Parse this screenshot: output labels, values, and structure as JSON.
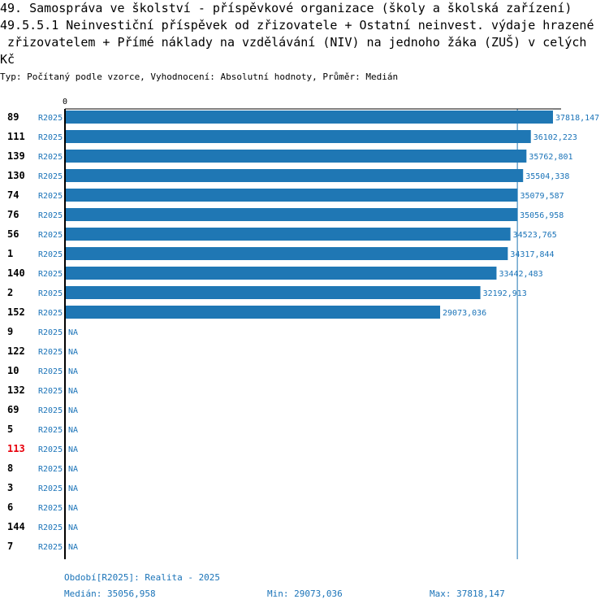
{
  "title_lines": [
    "49. Samospráva ve školství - příspěvkové organizace (školy a školská zařízení)",
    "49.5.5.1 Neinvestiční příspěvek od zřizovatele + Ostatní neinvest. výdaje hrazené",
    " zřizovatelem + Přímé náklady na vzdělávání (NIV) na jednoho žáka (ZUŠ) v celých",
    "Kč"
  ],
  "subtitle": "Typ: Počítaný podle vzorce, Vyhodnocení: Absolutní hodnoty, Průměr: Medián",
  "colors": {
    "bar": "#1f77b4",
    "label_blue": "#1a73b8",
    "highlight": "#e8000b",
    "text": "#000000"
  },
  "chart_data": {
    "type": "bar",
    "orientation": "horizontal",
    "axis_zero_label": "0",
    "xlim": [
      0,
      37818.147
    ],
    "median_line": 35056.958,
    "highlighted_category": "113",
    "rows": [
      {
        "id": "89",
        "period": "R2025",
        "value": 37818.147,
        "label": "37818,147"
      },
      {
        "id": "111",
        "period": "R2025",
        "value": 36102.223,
        "label": "36102,223"
      },
      {
        "id": "139",
        "period": "R2025",
        "value": 35762.801,
        "label": "35762,801"
      },
      {
        "id": "130",
        "period": "R2025",
        "value": 35504.338,
        "label": "35504,338"
      },
      {
        "id": "74",
        "period": "R2025",
        "value": 35079.587,
        "label": "35079,587"
      },
      {
        "id": "76",
        "period": "R2025",
        "value": 35056.958,
        "label": "35056,958"
      },
      {
        "id": "56",
        "period": "R2025",
        "value": 34523.765,
        "label": "34523,765"
      },
      {
        "id": "1",
        "period": "R2025",
        "value": 34317.844,
        "label": "34317,844"
      },
      {
        "id": "140",
        "period": "R2025",
        "value": 33442.483,
        "label": "33442,483"
      },
      {
        "id": "2",
        "period": "R2025",
        "value": 32192.913,
        "label": "32192,913"
      },
      {
        "id": "152",
        "period": "R2025",
        "value": 29073.036,
        "label": "29073,036"
      },
      {
        "id": "9",
        "period": "R2025",
        "value": null,
        "label": "NA"
      },
      {
        "id": "122",
        "period": "R2025",
        "value": null,
        "label": "NA"
      },
      {
        "id": "10",
        "period": "R2025",
        "value": null,
        "label": "NA"
      },
      {
        "id": "132",
        "period": "R2025",
        "value": null,
        "label": "NA"
      },
      {
        "id": "69",
        "period": "R2025",
        "value": null,
        "label": "NA"
      },
      {
        "id": "5",
        "period": "R2025",
        "value": null,
        "label": "NA"
      },
      {
        "id": "113",
        "period": "R2025",
        "value": null,
        "label": "NA"
      },
      {
        "id": "8",
        "period": "R2025",
        "value": null,
        "label": "NA"
      },
      {
        "id": "3",
        "period": "R2025",
        "value": null,
        "label": "NA"
      },
      {
        "id": "6",
        "period": "R2025",
        "value": null,
        "label": "NA"
      },
      {
        "id": "144",
        "period": "R2025",
        "value": null,
        "label": "NA"
      },
      {
        "id": "7",
        "period": "R2025",
        "value": null,
        "label": "NA"
      }
    ]
  },
  "footer": {
    "period_note": "Období[R2025]: Realita - 2025",
    "median": "Medián: 35056,958",
    "min": "Min: 29073,036",
    "max": "Max: 37818,147"
  }
}
